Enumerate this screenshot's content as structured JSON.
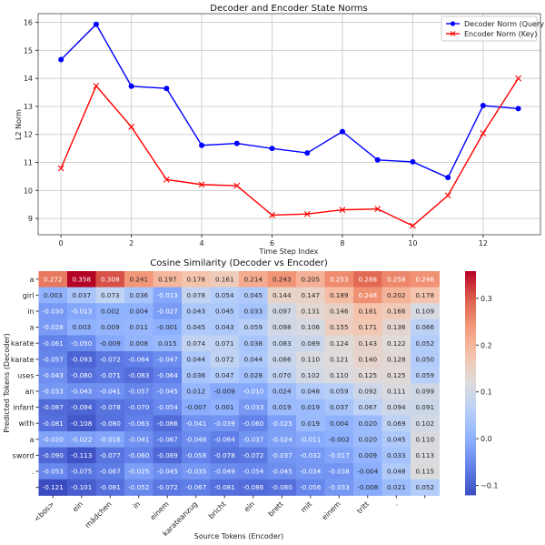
{
  "chart_data": [
    {
      "type": "line",
      "title": "Decoder and Encoder State Norms",
      "xlabel": "Time Step Index",
      "ylabel": "L2 Norm",
      "x": [
        0,
        1,
        2,
        3,
        4,
        5,
        6,
        7,
        8,
        9,
        10,
        11,
        12,
        13
      ],
      "xticks": [
        0,
        2,
        4,
        6,
        8,
        10,
        12
      ],
      "yticks": [
        9,
        10,
        11,
        12,
        13,
        14,
        15,
        16
      ],
      "xlim": [
        -0.65,
        13.63
      ],
      "ylim": [
        8.42,
        16.31
      ],
      "grid": true,
      "legend_position": "top-right",
      "series": [
        {
          "name": "Decoder Norm (Query)",
          "color": "#0000ff",
          "marker": "circle",
          "values": [
            14.67,
            15.93,
            13.72,
            13.64,
            11.61,
            11.68,
            11.5,
            11.34,
            12.1,
            11.09,
            11.02,
            10.46,
            13.03,
            12.92
          ]
        },
        {
          "name": "Encoder Norm (Key)",
          "color": "#ff0000",
          "marker": "x",
          "values": [
            10.79,
            13.73,
            12.27,
            10.39,
            10.21,
            10.17,
            9.12,
            9.16,
            9.31,
            9.34,
            8.74,
            9.82,
            12.04,
            14.0
          ]
        }
      ]
    },
    {
      "type": "heatmap",
      "title": "Cosine Similarity (Decoder vs Encoder)",
      "xlabel": "Source Tokens (Encoder)",
      "ylabel": "Predicted Tokens (Decoder)",
      "colormap": "coolwarm",
      "vmin": -0.121,
      "vmax": 0.358,
      "colorbar_ticks": [
        -0.1,
        0.0,
        0.1,
        0.2,
        0.3
      ],
      "colorbar_tick_labels": [
        "−0.1",
        "0.0",
        "0.1",
        "0.2",
        "0.3"
      ],
      "x_labels": [
        "<bos>",
        "ein",
        "mädchen",
        "in",
        "einem",
        "karateanzug",
        "bricht",
        "ein",
        "brett",
        "mit",
        "einem",
        "tritt",
        ".",
        ""
      ],
      "y_labels": [
        "a",
        "girl",
        "in",
        "a",
        "karate",
        "karate",
        "uses",
        "an",
        "infant",
        "with",
        "a",
        "sword",
        ".",
        ""
      ],
      "values": [
        [
          0.272,
          0.358,
          0.308,
          0.241,
          0.197,
          0.178,
          0.161,
          0.214,
          0.243,
          0.205,
          0.253,
          0.288,
          0.258,
          0.246
        ],
        [
          0.003,
          0.037,
          0.073,
          0.036,
          -0.013,
          0.078,
          0.054,
          0.045,
          0.144,
          0.147,
          0.189,
          0.248,
          0.202,
          0.178
        ],
        [
          -0.03,
          -0.013,
          0.002,
          0.004,
          -0.027,
          0.043,
          0.045,
          0.033,
          0.097,
          0.131,
          0.146,
          0.181,
          0.166,
          0.109
        ],
        [
          -0.028,
          0.003,
          0.009,
          0.011,
          -0.001,
          0.045,
          0.043,
          0.059,
          0.098,
          0.106,
          0.155,
          0.171,
          0.136,
          0.066
        ],
        [
          -0.061,
          -0.05,
          -0.009,
          0.008,
          0.015,
          0.074,
          0.071,
          0.038,
          0.083,
          0.089,
          0.124,
          0.143,
          0.122,
          0.052
        ],
        [
          -0.057,
          -0.093,
          -0.072,
          -0.064,
          -0.047,
          0.044,
          0.072,
          0.044,
          0.086,
          0.11,
          0.121,
          0.14,
          0.128,
          0.05
        ],
        [
          -0.043,
          -0.08,
          -0.071,
          -0.083,
          -0.064,
          0.036,
          0.047,
          0.028,
          0.07,
          0.102,
          0.11,
          0.125,
          0.125,
          0.059
        ],
        [
          -0.033,
          -0.043,
          -0.041,
          -0.057,
          -0.045,
          0.012,
          -0.009,
          -0.01,
          0.024,
          0.048,
          0.059,
          0.092,
          0.111,
          0.099
        ],
        [
          -0.087,
          -0.094,
          -0.078,
          -0.07,
          -0.054,
          -0.007,
          0.001,
          -0.033,
          0.019,
          0.019,
          0.037,
          0.067,
          0.094,
          0.091
        ],
        [
          -0.081,
          -0.108,
          -0.08,
          -0.063,
          -0.086,
          -0.041,
          -0.039,
          -0.06,
          -0.025,
          0.019,
          0.004,
          0.02,
          0.069,
          0.102
        ],
        [
          -0.02,
          -0.022,
          -0.016,
          -0.041,
          -0.067,
          -0.048,
          -0.064,
          -0.037,
          -0.024,
          -0.011,
          -0.002,
          0.02,
          0.045,
          0.11
        ],
        [
          -0.09,
          -0.113,
          -0.077,
          -0.06,
          -0.089,
          -0.058,
          -0.078,
          -0.072,
          -0.037,
          -0.032,
          -0.017,
          0.009,
          0.033,
          0.113
        ],
        [
          -0.053,
          -0.075,
          -0.067,
          -0.025,
          -0.045,
          -0.035,
          -0.049,
          -0.054,
          -0.045,
          -0.034,
          -0.038,
          -0.004,
          0.048,
          0.115
        ],
        [
          -0.121,
          -0.101,
          -0.081,
          -0.052,
          -0.072,
          -0.067,
          -0.081,
          -0.086,
          -0.08,
          -0.056,
          -0.033,
          -0.008,
          0.021,
          0.052
        ]
      ]
    }
  ]
}
